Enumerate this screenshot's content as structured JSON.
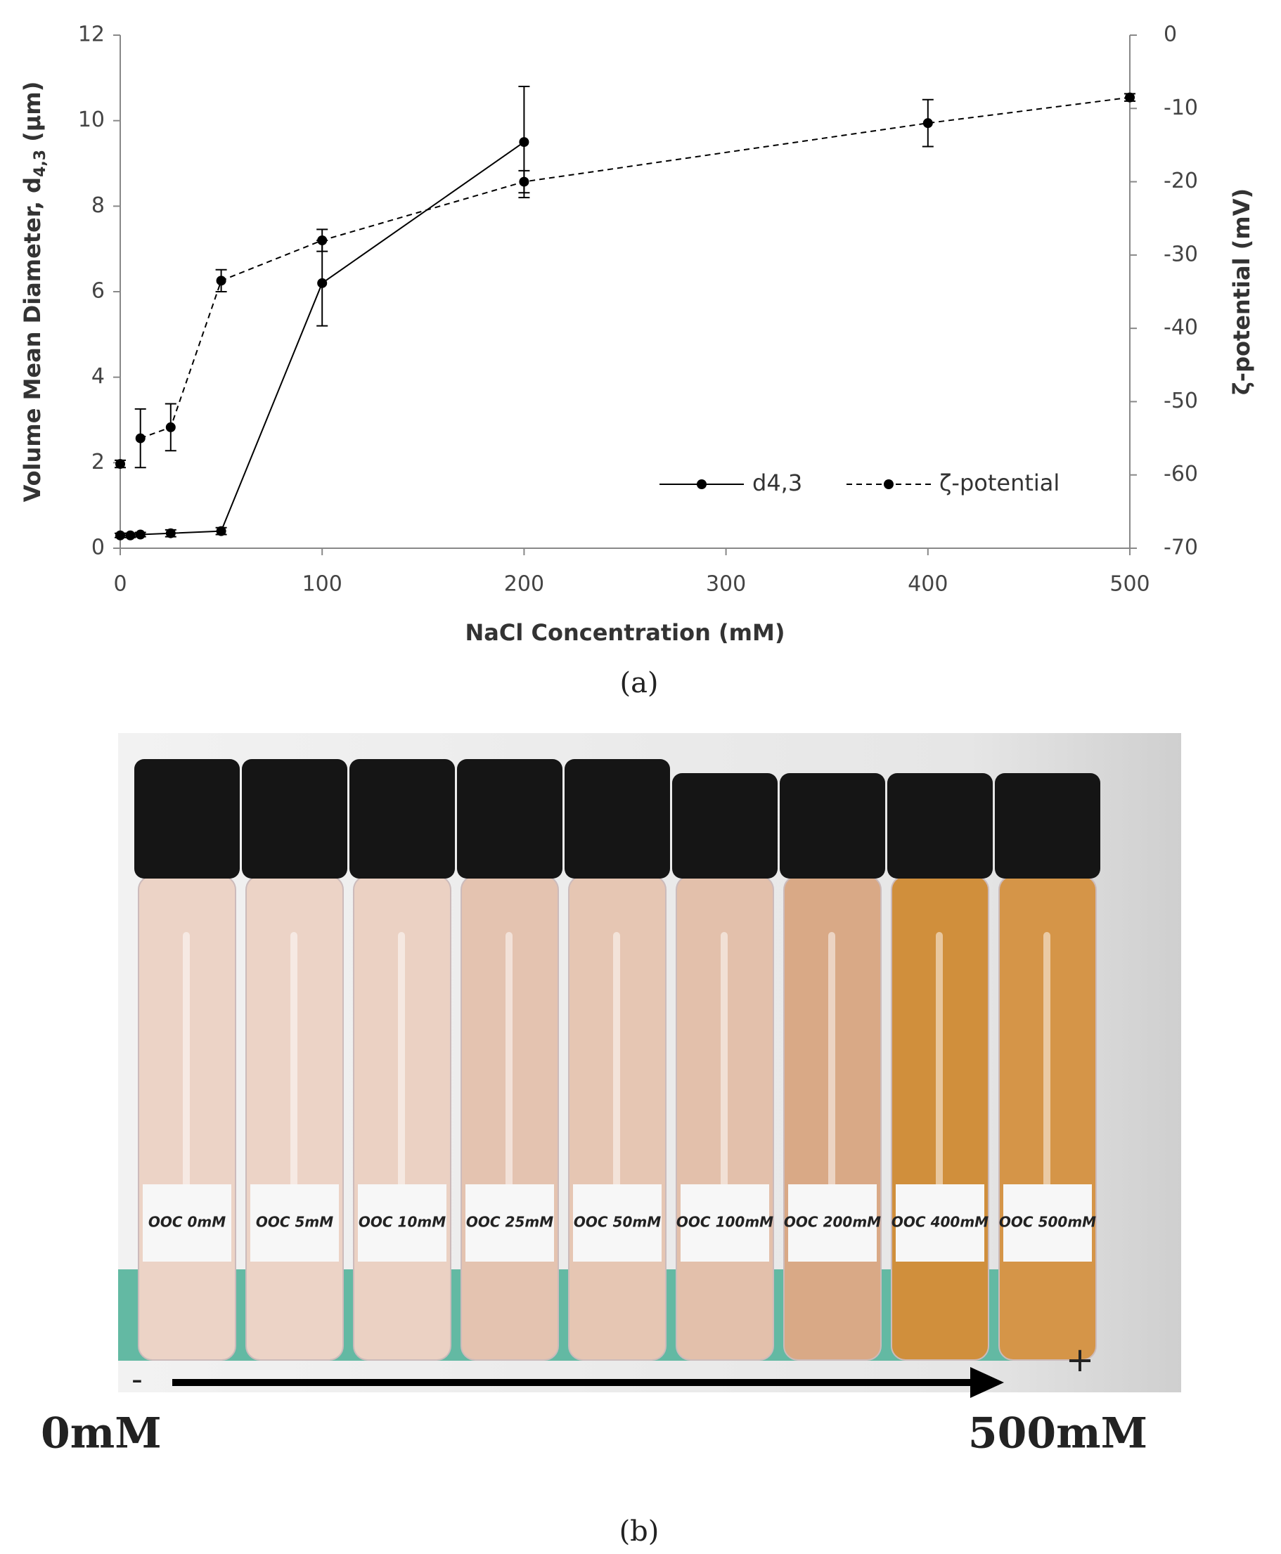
{
  "chart_data": {
    "type": "line",
    "x": [
      0,
      5,
      10,
      25,
      50,
      100,
      200,
      400,
      500
    ],
    "series": [
      {
        "name": "d4,3",
        "color": "#000000",
        "dash": false,
        "values": [
          0.3,
          0.3,
          0.32,
          0.35,
          0.4,
          6.2,
          9.5,
          null,
          null
        ],
        "errors": [
          0.05,
          0.05,
          0.05,
          0.08,
          0.08,
          1.0,
          1.3,
          null,
          null
        ]
      },
      {
        "name": "ζ-potential",
        "color": "#000000",
        "dash": true,
        "axis": "y2",
        "values": [
          -58.5,
          null,
          -55,
          -53.5,
          -33.5,
          -28,
          -20,
          -12,
          -8.5
        ],
        "errors": [
          0.5,
          null,
          4,
          3.2,
          1.5,
          1.5,
          1.5,
          3.2,
          0.5
        ]
      }
    ],
    "xlabel": "NaCl Concentration (mM)",
    "ylabel": {
      "text": "Volume Mean Diameter, d",
      "sub": "4,3",
      "suffix": " (μm)"
    },
    "y2label": "ζ-potential (mV)",
    "xlim": [
      0,
      500
    ],
    "xticks": [
      0,
      100,
      200,
      300,
      400,
      500
    ],
    "ylim": [
      0,
      12
    ],
    "yticks": [
      0,
      2,
      4,
      6,
      8,
      10,
      12
    ],
    "y2lim": [
      -70,
      0
    ],
    "y2ticks": [
      -70,
      -60,
      -50,
      -40,
      -30,
      -20,
      -10,
      0
    ],
    "legend": "lower-right",
    "grid": false
  },
  "captions": {
    "a": "(a)",
    "b": "(b)"
  },
  "photo": {
    "tube_labels": [
      "OOC 0mM",
      "OOC 5mM",
      "OOC 10mM",
      "OOC 25mM",
      "OOC 50mM",
      "OOC 100mM",
      "OOC 200mM",
      "OOC 400mM",
      "OOC 500mM"
    ],
    "minus": "-",
    "plus": "+",
    "start": "0mM",
    "end": "500mM"
  }
}
